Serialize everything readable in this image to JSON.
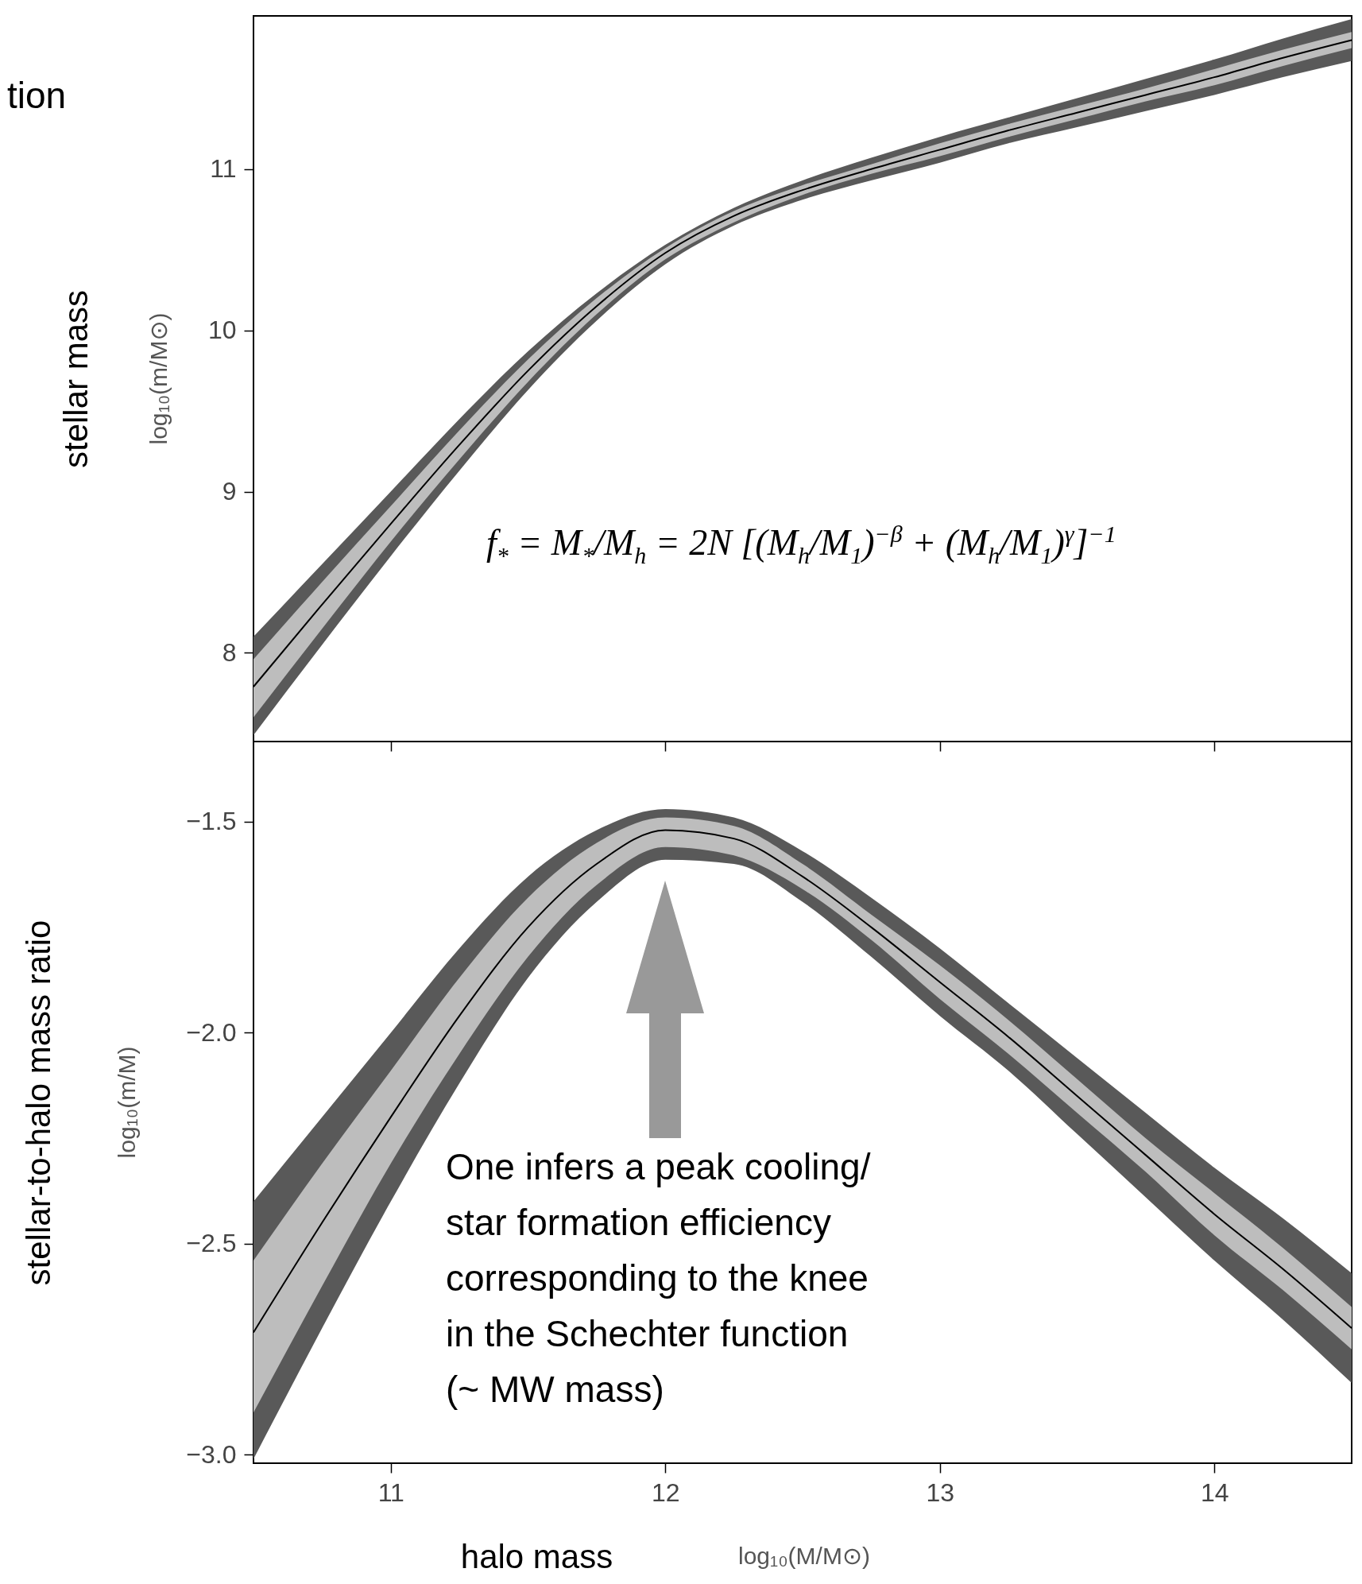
{
  "chart_data": [
    {
      "type": "line",
      "title": "tion",
      "ylabel": "stellar mass",
      "annotations": [
        "log₁₀(m/M⊙)",
        "f$_{*}$ = M$_{*}$/M$_{h}$ = 2N [(M$_{h}$/M$_{1}$)$^{−β}$ + (M$_{h}$/M$_{1}$)$^{γ}$]$^{−1}$"
      ],
      "x": [
        10.5,
        10.75,
        11,
        11.25,
        11.5,
        11.75,
        12,
        12.25,
        12.5,
        12.75,
        13,
        13.25,
        13.5,
        13.75,
        14,
        14.25,
        14.5
      ],
      "xlim": [
        10.5,
        14.5
      ],
      "xticks": [
        11,
        12,
        13,
        14
      ],
      "ylim": [
        7.45,
        11.95
      ],
      "yticks": [
        8,
        9,
        10,
        11
      ],
      "tick_labels": "y",
      "series": [
        {
          "color": "#595959",
          "values": [
            null,
            null,
            null,
            null,
            null,
            null,
            null,
            null,
            null,
            null,
            null,
            null,
            null,
            null,
            null,
            null,
            null
          ],
          "lower": [
            7.49,
            8.05,
            8.6,
            9.13,
            9.63,
            10.06,
            10.41,
            10.65,
            10.81,
            10.93,
            11.04,
            11.16,
            11.26,
            11.36,
            11.46,
            11.57,
            11.67
          ],
          "upper": [
            8.1,
            8.55,
            9.0,
            9.45,
            9.87,
            10.23,
            10.53,
            10.76,
            10.93,
            11.07,
            11.2,
            11.32,
            11.44,
            11.56,
            11.68,
            11.81,
            11.93
          ]
        },
        {
          "color": "#bdbdbd",
          "values": [
            null,
            null,
            null,
            null,
            null,
            null,
            null,
            null,
            null,
            null,
            null,
            null,
            null,
            null,
            null,
            null,
            null
          ],
          "lower": [
            7.6,
            8.15,
            8.69,
            9.2,
            9.68,
            10.1,
            10.44,
            10.67,
            10.84,
            10.97,
            11.08,
            11.2,
            11.31,
            11.42,
            11.52,
            11.64,
            11.75
          ],
          "upper": [
            7.96,
            8.44,
            8.91,
            9.38,
            9.82,
            10.2,
            10.51,
            10.74,
            10.9,
            11.03,
            11.16,
            11.28,
            11.39,
            11.5,
            11.62,
            11.74,
            11.85
          ]
        },
        {
          "color": "#000000",
          "values": [
            7.79,
            8.3,
            8.8,
            9.29,
            9.75,
            10.15,
            10.48,
            10.71,
            10.87,
            11.0,
            11.12,
            11.24,
            11.35,
            11.46,
            11.57,
            11.69,
            11.8
          ]
        }
      ]
    },
    {
      "type": "line",
      "xlabel": "halo mass",
      "ylabel": "stellar-to-halo mass ratio",
      "annotations": [
        "log₁₀(m/M)",
        "log₁₀(M/M⊙)",
        "One infers a peak cooling/\nstar formation efficiency\ncorresponding to the knee\nin the Schechter function\n(~ MW mass)"
      ],
      "x": [
        10.5,
        10.75,
        11,
        11.25,
        11.5,
        11.75,
        12,
        12.25,
        12.5,
        12.75,
        13,
        13.25,
        13.5,
        13.75,
        14,
        14.25,
        14.5
      ],
      "xlim": [
        10.5,
        14.5
      ],
      "xticks": [
        11,
        12,
        13,
        14
      ],
      "ylim": [
        -3.02,
        -1.31
      ],
      "yticks": [
        {
          "value": -3,
          "label": "−3.0"
        },
        {
          "value": -2.5,
          "label": "−2.5"
        },
        {
          "value": -2,
          "label": "−2.0"
        },
        {
          "value": -1.5,
          "label": "−1.5"
        }
      ],
      "series": [
        {
          "color": "#595959",
          "values": [
            null,
            null,
            null,
            null,
            null,
            null,
            null,
            null,
            null,
            null,
            null,
            null,
            null,
            null,
            null,
            null,
            null
          ],
          "lower": [
            -3.01,
            -2.7,
            -2.4,
            -2.12,
            -1.87,
            -1.69,
            -1.59,
            -1.6,
            -1.69,
            -1.82,
            -1.96,
            -2.09,
            -2.24,
            -2.39,
            -2.54,
            -2.68,
            -2.83
          ],
          "upper": [
            -2.4,
            -2.2,
            -2.0,
            -1.8,
            -1.63,
            -1.52,
            -1.47,
            -1.49,
            -1.57,
            -1.68,
            -1.8,
            -1.93,
            -2.06,
            -2.19,
            -2.32,
            -2.44,
            -2.57
          ]
        },
        {
          "color": "#bdbdbd",
          "values": [
            null,
            null,
            null,
            null,
            null,
            null,
            null,
            null,
            null,
            null,
            null,
            null,
            null,
            null,
            null,
            null,
            null
          ],
          "lower": [
            -2.9,
            -2.6,
            -2.31,
            -2.05,
            -1.82,
            -1.65,
            -1.56,
            -1.58,
            -1.66,
            -1.78,
            -1.92,
            -2.05,
            -2.19,
            -2.33,
            -2.48,
            -2.61,
            -2.75
          ],
          "upper": [
            -2.54,
            -2.31,
            -2.09,
            -1.87,
            -1.68,
            -1.55,
            -1.49,
            -1.51,
            -1.6,
            -1.72,
            -1.84,
            -1.97,
            -2.11,
            -2.25,
            -2.38,
            -2.51,
            -2.65
          ]
        },
        {
          "color": "#000000",
          "values": [
            -2.71,
            -2.45,
            -2.2,
            -1.96,
            -1.75,
            -1.6,
            -1.52,
            -1.54,
            -1.63,
            -1.75,
            -1.88,
            -2.01,
            -2.15,
            -2.29,
            -2.43,
            -2.56,
            -2.7
          ]
        }
      ]
    }
  ]
}
